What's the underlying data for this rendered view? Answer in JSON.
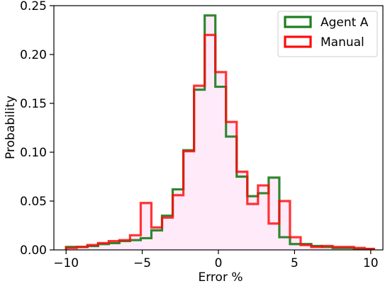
{
  "chart_data": {
    "type": "histogram",
    "xlabel": "Error %",
    "ylabel": "Probability",
    "xlim": [
      -10.8,
      10.8
    ],
    "ylim": [
      0,
      0.25
    ],
    "xticks": [
      -10,
      -5,
      0,
      5,
      10
    ],
    "xtick_labels": [
      "−10",
      "−5",
      "0",
      "5",
      "10"
    ],
    "yticks": [
      0.0,
      0.05,
      0.1,
      0.15,
      0.2,
      0.25
    ],
    "ytick_labels": [
      "0.00",
      "0.05",
      "0.10",
      "0.15",
      "0.20",
      "0.25"
    ],
    "grid": false,
    "legend_position": "top-right",
    "bin_edges": [
      -10,
      -9.3,
      -8.6,
      -7.9,
      -7.2,
      -6.5,
      -5.8,
      -5.1,
      -4.4,
      -3.7,
      -3.0,
      -2.3,
      -1.6,
      -0.9,
      -0.2,
      0.5,
      1.2,
      1.9,
      2.6,
      3.3,
      4.0,
      4.7,
      5.4,
      6.1,
      6.8,
      7.5,
      8.2,
      8.9,
      9.6,
      10.2
    ],
    "series": [
      {
        "name": "Agent A",
        "color": "#1e7d1e",
        "values": [
          0.003,
          0.003,
          0.004,
          0.006,
          0.007,
          0.009,
          0.01,
          0.012,
          0.02,
          0.035,
          0.062,
          0.102,
          0.164,
          0.24,
          0.167,
          0.116,
          0.075,
          0.055,
          0.058,
          0.074,
          0.013,
          0.006,
          0.006,
          0.004,
          0.003,
          0.002,
          0.002,
          0.001,
          0.001
        ]
      },
      {
        "name": "Manual",
        "color": "#ff0a0a",
        "values": [
          0.002,
          0.003,
          0.005,
          0.007,
          0.009,
          0.01,
          0.015,
          0.048,
          0.023,
          0.033,
          0.056,
          0.101,
          0.168,
          0.22,
          0.182,
          0.131,
          0.08,
          0.047,
          0.066,
          0.027,
          0.05,
          0.013,
          0.005,
          0.003,
          0.004,
          0.003,
          0.003,
          0.002,
          0.001
        ]
      }
    ]
  }
}
